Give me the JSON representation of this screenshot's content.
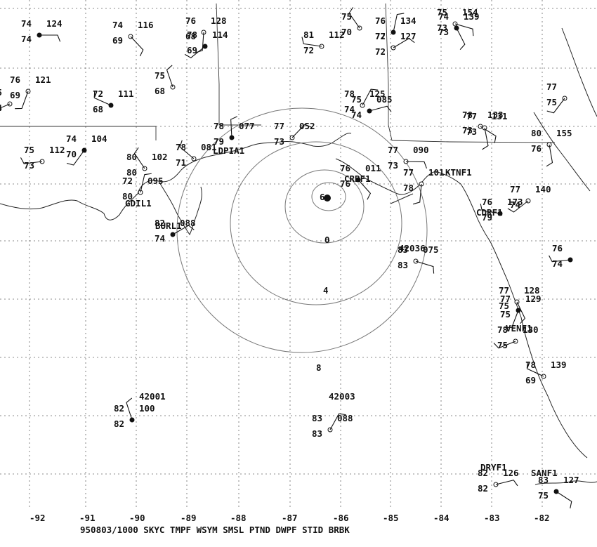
{
  "title": "950803/1000  SKYC TMPF WSYM SMSL PTND DWPF STID BRBK",
  "lon_labels": [
    "-92",
    "-91",
    "-90",
    "-89",
    "-88",
    "-87",
    "-86",
    "-85",
    "-84",
    "-83",
    "-82"
  ],
  "storm_track_labels": [
    "6",
    "0",
    "4",
    "8"
  ],
  "station_ids": [
    "42001",
    "42003",
    "42036",
    "LDPIA1",
    "CRBF1",
    "KTNF1",
    "CDRF1",
    "VENF1",
    "DRYF1",
    "SANF1",
    "BURL1",
    "GDIL1"
  ],
  "stations": [
    {
      "id": "s01",
      "t": "74",
      "d": "74",
      "p": "124"
    },
    {
      "id": "s02",
      "t": "74",
      "d": "69",
      "p": "116"
    },
    {
      "id": "s03",
      "t": "76",
      "d": "68",
      "p": "128"
    },
    {
      "id": "s04",
      "t": "78",
      "d": "69",
      "p": "114"
    },
    {
      "id": "s05",
      "t": "81",
      "d": "72",
      "p": "112"
    },
    {
      "id": "s06",
      "t": "75",
      "d": "70",
      "p": ""
    },
    {
      "id": "s07",
      "t": "76",
      "d": "72",
      "p": "134"
    },
    {
      "id": "s08",
      "t": "77",
      "d": "72",
      "p": "127"
    },
    {
      "id": "s09",
      "t": "75",
      "d": "73",
      "p": "154"
    },
    {
      "id": "s10",
      "t": "74",
      "d": "73",
      "p": "139"
    },
    {
      "id": "s11",
      "t": "76",
      "d": "69",
      "p": "121"
    },
    {
      "id": "s12",
      "t": "75",
      "d": "74",
      "p": ""
    },
    {
      "id": "s13",
      "t": "72",
      "d": "68",
      "p": "111"
    },
    {
      "id": "s14",
      "t": "75",
      "d": "68",
      "p": ""
    },
    {
      "id": "s15",
      "t": "78",
      "d": "74",
      "p": "125"
    },
    {
      "id": "s16",
      "t": "75",
      "d": "74",
      "p": "085"
    },
    {
      "id": "s17",
      "t": "78",
      "d": "73",
      "p": "133"
    },
    {
      "id": "s18",
      "t": "77",
      "d": "73",
      "p": "131"
    },
    {
      "id": "s19",
      "t": "74",
      "d": "70",
      "p": "104"
    },
    {
      "id": "s20",
      "t": "75",
      "d": "73",
      "p": "112"
    },
    {
      "id": "s21",
      "t": "78",
      "d": "71",
      "p": "081"
    },
    {
      "id": "s22",
      "t": "78",
      "d": "79",
      "p": "077"
    },
    {
      "id": "s23",
      "t": "77",
      "d": "73",
      "p": "052"
    },
    {
      "id": "s24",
      "t": "77",
      "d": "73",
      "p": "090"
    },
    {
      "id": "s25",
      "t": "76",
      "d": "76",
      "p": "011"
    },
    {
      "id": "s26",
      "t": "77",
      "d": "78",
      "p": "101"
    },
    {
      "id": "s27",
      "t": "77",
      "d": "74",
      "p": "140"
    },
    {
      "id": "s28",
      "t": "76",
      "d": "79",
      "p": "173"
    },
    {
      "id": "s29",
      "t": "80",
      "d": "80",
      "p": "102"
    },
    {
      "id": "s30",
      "t": "72",
      "d": "80",
      "p": "095"
    },
    {
      "id": "s31",
      "t": "82",
      "d": "74",
      "p": "088"
    },
    {
      "id": "s32",
      "t": "83",
      "d": "83",
      "p": "075"
    },
    {
      "id": "s33",
      "t": "77",
      "d": "75",
      "p": "128"
    },
    {
      "id": "s34",
      "t": "77",
      "d": "75",
      "p": "129"
    },
    {
      "id": "s35",
      "t": "78",
      "d": "75",
      "p": "130"
    },
    {
      "id": "s36",
      "t": "78",
      "d": "69",
      "p": "139"
    },
    {
      "id": "s37",
      "t": "82",
      "d": "82",
      "p": "100"
    },
    {
      "id": "s38",
      "t": "83",
      "d": "83",
      "p": "088"
    },
    {
      "id": "s39",
      "t": "82",
      "d": "82",
      "p": "126"
    },
    {
      "id": "s40",
      "t": "83",
      "d": "75",
      "p": "127"
    },
    {
      "id": "s41",
      "t": "80",
      "d": "76",
      "p": "155"
    },
    {
      "id": "s42",
      "t": "77",
      "d": "75",
      "p": ""
    },
    {
      "id": "s43",
      "t": "76",
      "d": "74",
      "p": ""
    }
  ]
}
